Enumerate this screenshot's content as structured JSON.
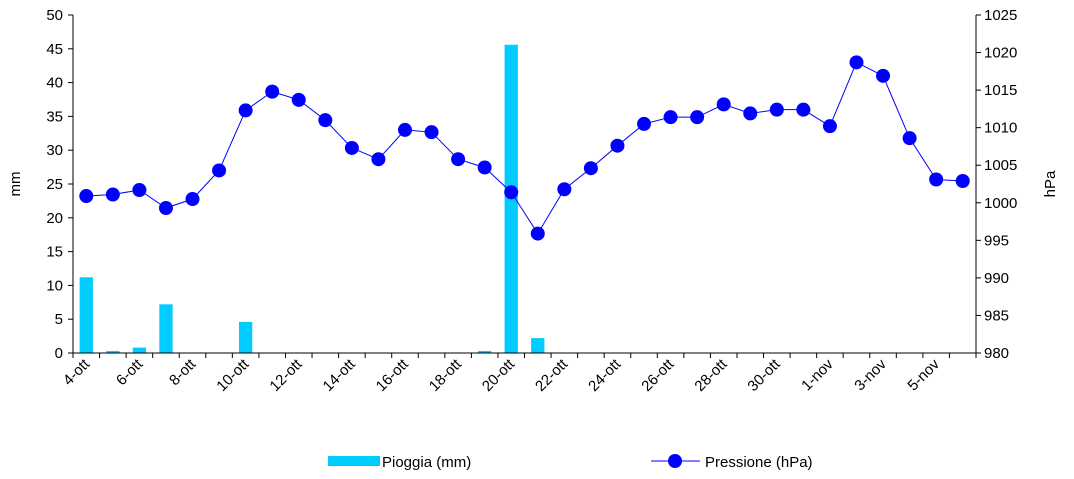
{
  "chart_data": {
    "type": "bar+line",
    "title": "",
    "xlabel": "",
    "ylabel_left": "mm",
    "ylabel_right": "hPa",
    "ylim_left": [
      0,
      50
    ],
    "yticks_left": [
      0,
      5,
      10,
      15,
      20,
      25,
      30,
      35,
      40,
      45,
      50
    ],
    "ylim_right": [
      980,
      1025
    ],
    "yticks_right": [
      980,
      985,
      990,
      995,
      1000,
      1005,
      1010,
      1015,
      1020,
      1025
    ],
    "grid": false,
    "legend_position": "bottom",
    "x": [
      "4-ott",
      "5-ott",
      "6-ott",
      "7-ott",
      "8-ott",
      "9-ott",
      "10-ott",
      "11-ott",
      "12-ott",
      "13-ott",
      "14-ott",
      "15-ott",
      "16-ott",
      "17-ott",
      "18-ott",
      "19-ott",
      "20-ott",
      "21-ott",
      "22-ott",
      "23-ott",
      "24-ott",
      "25-ott",
      "26-ott",
      "27-ott",
      "28-ott",
      "29-ott",
      "30-ott",
      "31-ott",
      "1-nov",
      "2-nov",
      "3-nov",
      "4-nov",
      "5-nov",
      "6-nov"
    ],
    "tick_labels": [
      "4-ott",
      "6-ott",
      "8-ott",
      "10-ott",
      "12-ott",
      "14-ott",
      "16-ott",
      "18-ott",
      "20-ott",
      "22-ott",
      "24-ott",
      "26-ott",
      "28-ott",
      "30-ott",
      "1-nov",
      "3-nov",
      "5-nov"
    ],
    "series": [
      {
        "name": "Pioggia (mm)",
        "type": "bar",
        "axis": "left",
        "color": "#00ccff",
        "values": [
          11.2,
          0.3,
          0.8,
          7.2,
          0,
          0,
          4.6,
          0,
          0,
          0,
          0,
          0,
          0,
          0,
          0,
          0.3,
          45.6,
          2.2,
          0,
          0,
          0,
          0,
          0,
          0,
          0,
          0,
          0,
          0,
          0,
          0,
          0,
          0,
          0,
          0
        ]
      },
      {
        "name": "Pressione (hPa)",
        "type": "line",
        "axis": "right",
        "color": "#0000ff",
        "values": [
          1000.9,
          1001.1,
          1001.7,
          999.3,
          1000.5,
          1004.3,
          1012.3,
          1014.8,
          1013.7,
          1011.0,
          1007.3,
          1005.8,
          1009.7,
          1009.4,
          1005.8,
          1004.7,
          1001.4,
          995.9,
          1001.8,
          1004.6,
          1007.6,
          1010.5,
          1011.4,
          1011.4,
          1013.1,
          1011.9,
          1012.4,
          1012.4,
          1010.2,
          1018.7,
          1016.9,
          1008.6,
          1003.1,
          1002.9
        ]
      }
    ]
  }
}
